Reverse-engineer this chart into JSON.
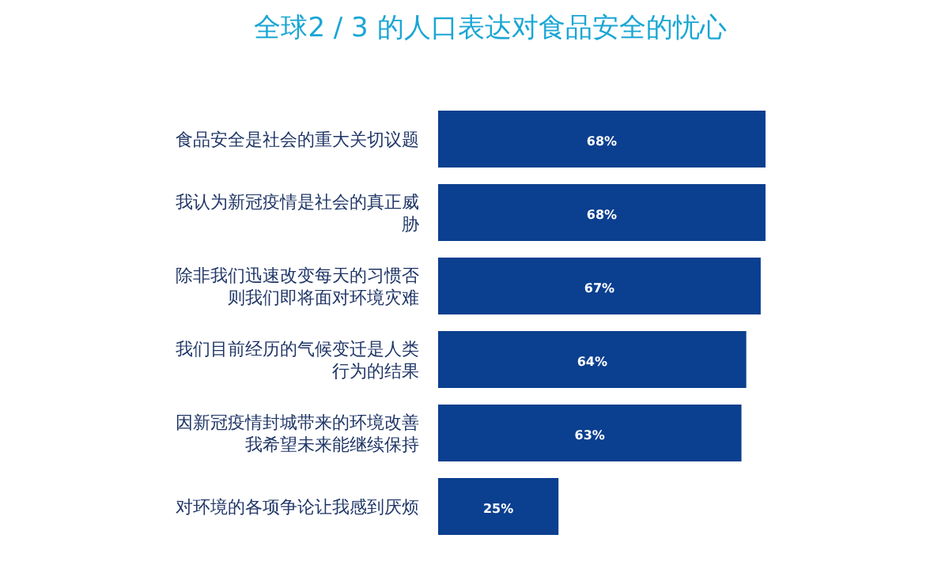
{
  "chart_data": {
    "type": "bar",
    "orientation": "horizontal",
    "title": "全球2 / 3 的人口表达对食品安全的忧心",
    "categories": [
      "食品安全是社会的重大关切议题",
      "我认为新冠疫情是社会的真正威胁",
      "除非我们迅速改变每天的习惯否则我们即将面对环境灾难",
      "我们目前经历的气候变迁是人类行为的结果",
      "因新冠疫情封城带来的环境改善我希望未来能继续保持",
      "对环境的各项争论让我感到厌烦"
    ],
    "values": [
      68,
      68,
      67,
      64,
      63,
      25
    ],
    "value_labels": [
      "68%",
      "68%",
      "67%",
      "64%",
      "63%",
      "25%"
    ],
    "color": "#0b3f8f"
  }
}
